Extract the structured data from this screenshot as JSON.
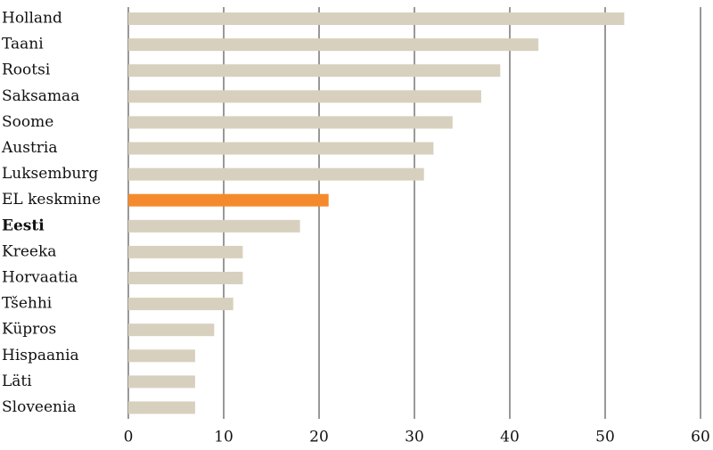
{
  "chart_data": {
    "type": "barh",
    "categories": [
      "Holland",
      "Taani",
      "Rootsi",
      "Saksamaa",
      "Soome",
      "Austria",
      "Luksemburg",
      "EL keskmine",
      "Eesti",
      "Kreeka",
      "Horvaatia",
      "Tšehhi",
      "Küpros",
      "Hispaania",
      "Läti",
      "Sloveenia"
    ],
    "values": [
      52,
      43,
      39,
      37,
      34,
      32,
      31,
      21,
      18,
      12,
      12,
      11,
      9,
      7,
      7,
      7
    ],
    "colors": [
      "#d8d0be",
      "#d8d0be",
      "#d8d0be",
      "#d8d0be",
      "#d8d0be",
      "#d8d0be",
      "#d8d0be",
      "#f58a2c",
      "#d8d0be",
      "#d8d0be",
      "#d8d0be",
      "#d8d0be",
      "#d8d0be",
      "#d8d0be",
      "#d8d0be",
      "#d8d0be"
    ],
    "bold_labels": [
      8
    ],
    "xlim": [
      0,
      60
    ],
    "xticks": [
      0,
      10,
      20,
      30,
      40,
      50,
      60
    ],
    "grid": true
  }
}
